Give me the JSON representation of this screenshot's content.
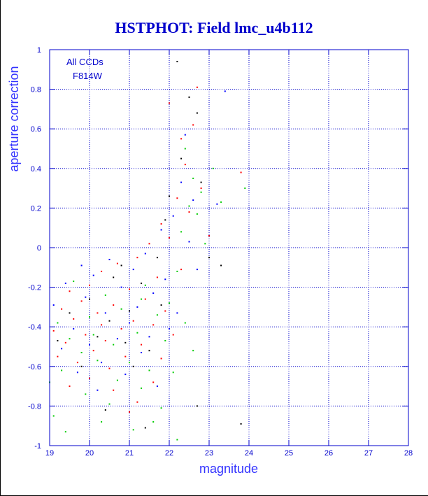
{
  "chart_data": {
    "type": "scatter",
    "title": "HSTPHOT: Field lmc_u4b112",
    "xlabel": "magnitude",
    "ylabel": "aperture correction",
    "xlim": [
      19,
      28
    ],
    "ylim": [
      -1,
      1
    ],
    "x_ticks": [
      19,
      20,
      21,
      22,
      23,
      24,
      25,
      26,
      27,
      28
    ],
    "y_ticks": [
      -1,
      -0.8,
      -0.6,
      -0.4,
      -0.2,
      0,
      0.2,
      0.4,
      0.6,
      0.8,
      1
    ],
    "grid": true,
    "annotations": [
      "All CCDs",
      "F814W"
    ],
    "colors": {
      "axes": "#0000cc",
      "grid": "#0000cc",
      "point_palette": [
        "#ff0000",
        "#00cc00",
        "#0000ff",
        "#000000"
      ]
    },
    "series": [
      {
        "color": "#ff0000",
        "points": [
          [
            19.1,
            -0.42
          ],
          [
            19.2,
            -0.55
          ],
          [
            19.3,
            -0.31
          ],
          [
            19.4,
            -0.48
          ],
          [
            19.5,
            -0.22
          ],
          [
            19.6,
            -0.36
          ],
          [
            19.7,
            -0.58
          ],
          [
            19.8,
            -0.27
          ],
          [
            19.9,
            -0.44
          ],
          [
            20.0,
            -0.19
          ],
          [
            20.1,
            -0.52
          ],
          [
            20.2,
            -0.33
          ],
          [
            20.3,
            -0.12
          ],
          [
            20.4,
            -0.47
          ],
          [
            20.5,
            -0.61
          ],
          [
            20.6,
            -0.29
          ],
          [
            20.7,
            -0.08
          ],
          [
            20.8,
            -0.41
          ],
          [
            20.9,
            -0.55
          ],
          [
            21.0,
            -0.21
          ],
          [
            21.1,
            -0.37
          ],
          [
            21.2,
            -0.05
          ],
          [
            21.3,
            -0.49
          ],
          [
            21.4,
            -0.26
          ],
          [
            21.5,
            0.02
          ],
          [
            21.6,
            -0.39
          ],
          [
            21.7,
            -0.15
          ],
          [
            21.8,
            0.12
          ],
          [
            21.9,
            -0.32
          ],
          [
            22.0,
            0.05
          ],
          [
            22.1,
            -0.44
          ],
          [
            22.2,
            0.25
          ],
          [
            22.3,
            -0.11
          ],
          [
            22.4,
            0.42
          ],
          [
            22.5,
            0.18
          ],
          [
            22.6,
            0.62
          ],
          [
            22.7,
            0.81
          ],
          [
            22.8,
            0.3
          ],
          [
            23.0,
            0.06
          ],
          [
            23.8,
            0.38
          ],
          [
            20.6,
            -0.72
          ],
          [
            21.2,
            -0.78
          ],
          [
            20.0,
            -0.66
          ],
          [
            21.6,
            -0.68
          ],
          [
            19.5,
            -0.7
          ],
          [
            22.0,
            0.73
          ],
          [
            21.0,
            -0.83
          ],
          [
            20.3,
            -0.39
          ],
          [
            21.8,
            -0.56
          ],
          [
            22.3,
            0.55
          ]
        ]
      },
      {
        "color": "#00cc00",
        "points": [
          [
            19.0,
            -0.68
          ],
          [
            19.1,
            -0.85
          ],
          [
            19.2,
            -0.38
          ],
          [
            19.3,
            -0.62
          ],
          [
            19.5,
            -0.46
          ],
          [
            19.6,
            -0.17
          ],
          [
            19.8,
            -0.53
          ],
          [
            19.9,
            -0.74
          ],
          [
            20.0,
            -0.35
          ],
          [
            20.2,
            -0.57
          ],
          [
            20.3,
            -0.88
          ],
          [
            20.4,
            -0.24
          ],
          [
            20.6,
            -0.49
          ],
          [
            20.7,
            -0.67
          ],
          [
            20.8,
            -0.31
          ],
          [
            21.0,
            -0.58
          ],
          [
            21.1,
            -0.92
          ],
          [
            21.2,
            -0.43
          ],
          [
            21.3,
            -0.71
          ],
          [
            21.4,
            -0.19
          ],
          [
            21.5,
            -0.62
          ],
          [
            21.7,
            -0.34
          ],
          [
            21.8,
            -0.81
          ],
          [
            21.9,
            -0.47
          ],
          [
            22.0,
            -0.28
          ],
          [
            22.1,
            -0.63
          ],
          [
            22.2,
            -0.12
          ],
          [
            22.3,
            0.08
          ],
          [
            22.4,
            -0.38
          ],
          [
            22.5,
            0.21
          ],
          [
            22.6,
            0.35
          ],
          [
            22.7,
            0.17
          ],
          [
            22.8,
            0.28
          ],
          [
            22.9,
            0.02
          ],
          [
            23.1,
            0.4
          ],
          [
            23.3,
            0.23
          ],
          [
            23.9,
            0.3
          ],
          [
            21.6,
            -0.88
          ],
          [
            20.5,
            -0.79
          ],
          [
            22.2,
            -0.97
          ],
          [
            19.4,
            -0.93
          ],
          [
            22.4,
            0.5
          ],
          [
            20.1,
            -0.44
          ],
          [
            21.3,
            -0.26
          ],
          [
            22.6,
            -0.52
          ]
        ]
      },
      {
        "color": "#0000ff",
        "points": [
          [
            19.1,
            -0.29
          ],
          [
            19.3,
            -0.51
          ],
          [
            19.4,
            -0.18
          ],
          [
            19.6,
            -0.41
          ],
          [
            19.7,
            -0.63
          ],
          [
            19.9,
            -0.25
          ],
          [
            20.0,
            -0.49
          ],
          [
            20.1,
            -0.14
          ],
          [
            20.3,
            -0.58
          ],
          [
            20.4,
            -0.33
          ],
          [
            20.5,
            -0.06
          ],
          [
            20.7,
            -0.46
          ],
          [
            20.8,
            -0.2
          ],
          [
            20.9,
            -0.64
          ],
          [
            21.0,
            -0.38
          ],
          [
            21.1,
            -0.11
          ],
          [
            21.3,
            -0.53
          ],
          [
            21.4,
            -0.03
          ],
          [
            21.5,
            -0.45
          ],
          [
            21.6,
            -0.23
          ],
          [
            21.8,
            0.09
          ],
          [
            21.9,
            -0.16
          ],
          [
            22.0,
            -0.41
          ],
          [
            22.1,
            0.16
          ],
          [
            22.3,
            0.33
          ],
          [
            22.4,
            0.57
          ],
          [
            22.5,
            0.03
          ],
          [
            22.6,
            0.24
          ],
          [
            22.7,
            -0.11
          ],
          [
            23.4,
            0.79
          ],
          [
            23.2,
            0.22
          ],
          [
            21.2,
            -0.3
          ],
          [
            20.2,
            -0.72
          ],
          [
            19.8,
            -0.09
          ],
          [
            22.2,
            -0.33
          ],
          [
            21.7,
            -0.7
          ]
        ]
      },
      {
        "color": "#000000",
        "points": [
          [
            19.2,
            -0.47
          ],
          [
            19.5,
            -0.33
          ],
          [
            19.8,
            -0.6
          ],
          [
            20.0,
            -0.26
          ],
          [
            20.2,
            -0.45
          ],
          [
            20.5,
            -0.37
          ],
          [
            20.6,
            -0.15
          ],
          [
            20.9,
            -0.48
          ],
          [
            21.0,
            -0.32
          ],
          [
            21.1,
            -0.6
          ],
          [
            21.3,
            -0.18
          ],
          [
            21.5,
            -0.52
          ],
          [
            21.7,
            -0.05
          ],
          [
            21.9,
            0.14
          ],
          [
            22.0,
            0.26
          ],
          [
            22.2,
            0.94
          ],
          [
            22.3,
            0.45
          ],
          [
            22.5,
            0.76
          ],
          [
            22.7,
            0.68
          ],
          [
            22.8,
            0.33
          ],
          [
            23.0,
            -0.05
          ],
          [
            23.3,
            -0.09
          ],
          [
            23.8,
            -0.89
          ],
          [
            20.4,
            -0.82
          ],
          [
            22.7,
            -0.8
          ],
          [
            21.4,
            -0.91
          ],
          [
            20.8,
            -0.09
          ],
          [
            21.8,
            -0.29
          ]
        ]
      }
    ]
  }
}
